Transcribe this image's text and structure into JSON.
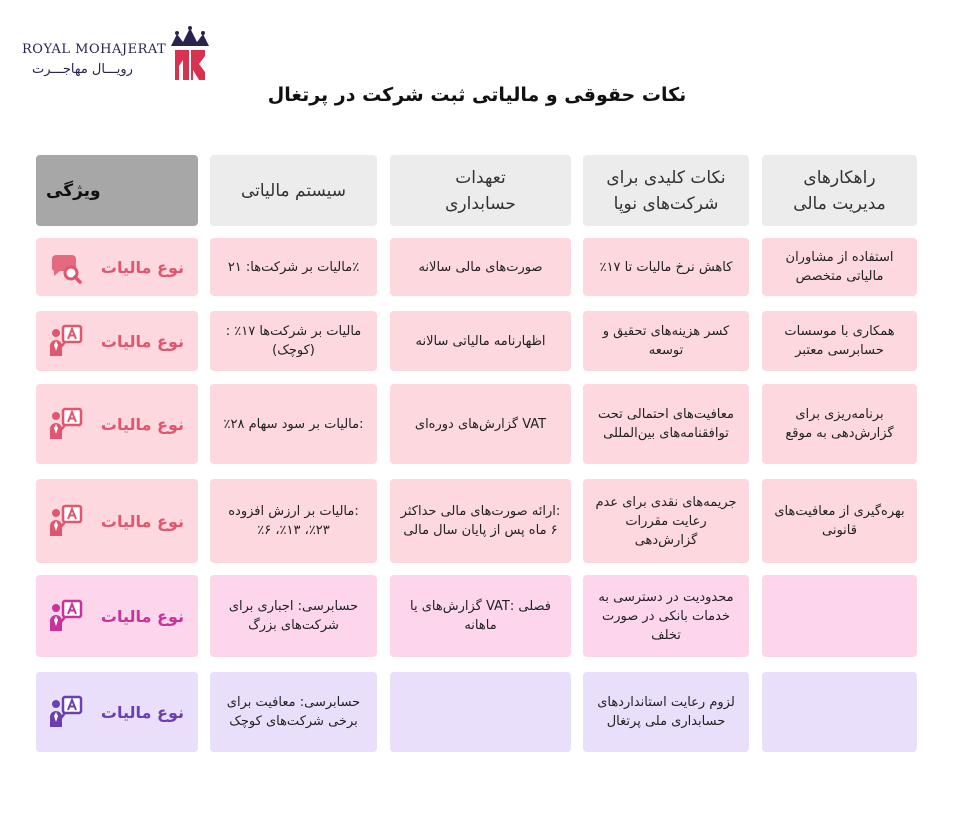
{
  "logo": {
    "en": "ROYAL MOHAJERAT",
    "fa": "رویـــال مهاجـــرت"
  },
  "title": "نکات حقوقی و مالیاتی ثبت شرکت در پرتغال",
  "headers": {
    "feature": "ویژگی",
    "tax_system": "سیستم مالیاتی",
    "accounting": "تعهدات حسابداری",
    "startups": "نکات کلیدی برای شرکت‌های نوپا",
    "strategies": "راهکارهای مدیریت مالی"
  },
  "row_label": "نوع مالیات",
  "colors": {
    "pink": "#e0566f",
    "magenta": "#c7339a",
    "purple": "#6a3fb0"
  },
  "rows": [
    {
      "tax_system": "٪مالیات بر شرکت‌ها: ۲۱",
      "accounting": "صورت‌های مالی سالانه",
      "startups": "کاهش نرخ مالیات تا ۱۷٪",
      "strategies": "استفاده از مشاوران مالیاتی متخصص",
      "icon": "chat-search-icon"
    },
    {
      "tax_system": "مالیات بر شرکت‌ها ۱۷٪ :(کوچک)",
      "accounting": "اظهارنامه مالیاتی سالانه",
      "startups": "کسر هزینه‌های تحقیق و توسعه",
      "strategies": "همکاری با موسسات حسابرسی معتبر",
      "icon": "person-document-icon"
    },
    {
      "tax_system": ":مالیات بر سود سهام ۲۸٪",
      "accounting": "VAT گزارش‌های دوره‌ای",
      "startups": "معافیت‌های احتمالی تحت توافقنامه‌های بین‌المللی",
      "strategies": "برنامه‌ریزی برای گزارش‌دهی به موقع",
      "icon": "person-document-icon"
    },
    {
      "tax_system": ":مالیات بر ارزش افزوده ۲۳٪، ۱۳٪، ۶٪",
      "accounting": ":ارائه صورت‌های مالی حداکثر ۶ ماه پس از پایان سال مالی",
      "startups": "جریمه‌های نقدی برای عدم رعایت مقررات گزارش‌دهی",
      "strategies": "بهره‌گیری از معافیت‌های قانونی",
      "icon": "person-document-icon"
    },
    {
      "tax_system": "حسابرسی: اجباری برای شرکت‌های بزرگ",
      "accounting": "فصلی :VAT گزارش‌های یا ماهانه",
      "startups": "محدودیت در دسترسی به خدمات بانکی در صورت تخلف",
      "strategies": "",
      "icon": "person-document-icon"
    },
    {
      "tax_system": "حسابرسی: معافیت برای برخی شرکت‌های کوچک",
      "accounting": "",
      "startups": "لزوم رعایت استانداردهای حسابداری ملی پرتغال",
      "strategies": "",
      "icon": "person-document-icon"
    }
  ]
}
